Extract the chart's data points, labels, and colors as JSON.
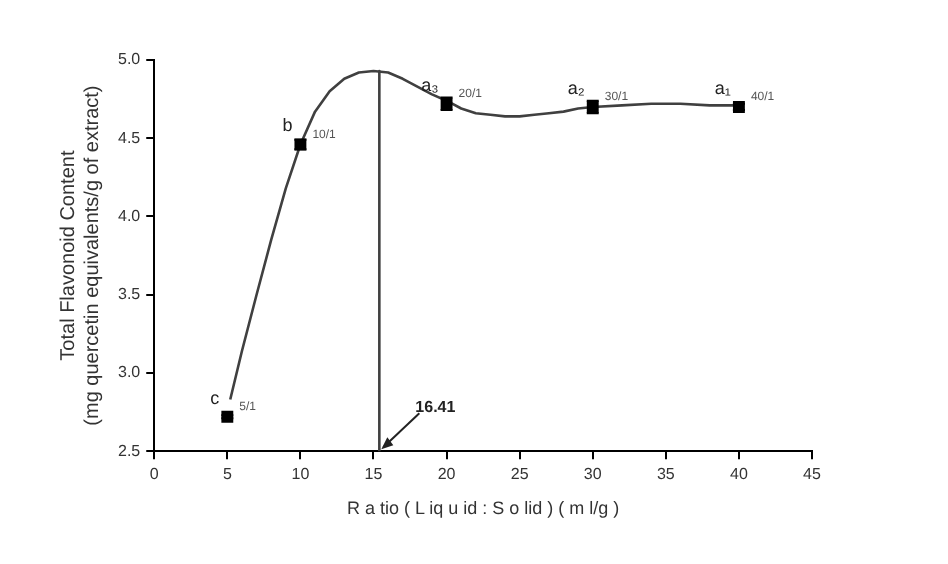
{
  "chart_data": {
    "type": "scatter",
    "xlabel": "R a tio ( L iq u id : S o lid ) ( m l/g )",
    "ylabel": "Total Flavonoid Content\n(mg quercetin equivalents/g of extract)",
    "xlim": [
      0,
      45
    ],
    "xticks": [
      0,
      5,
      10,
      15,
      20,
      25,
      30,
      35,
      40,
      45
    ],
    "ylim": [
      2.5,
      5.0
    ],
    "yticks": [
      2.5,
      {
        "value": 3,
        "label": "3.0"
      },
      3.5,
      {
        "value": 4,
        "label": "4.0"
      },
      4.5,
      {
        "value": 5,
        "label": "5.0"
      }
    ],
    "grid": false,
    "legend": false,
    "series": [
      {
        "marker": "square",
        "color": "#000000",
        "x": [
          5,
          10,
          20,
          30,
          40
        ],
        "values": [
          2.72,
          4.46,
          4.72,
          4.7,
          4.7
        ],
        "errors": [
          0.01,
          0.03,
          0.04,
          0.04,
          0.02
        ]
      },
      {
        "type": "line",
        "color": "#404040",
        "x": [
          5.2,
          6,
          7,
          8,
          9,
          10,
          11,
          12,
          13,
          14,
          15,
          16,
          17,
          18,
          19,
          20,
          21,
          22,
          23,
          24,
          25,
          26,
          27,
          28,
          29,
          30,
          32,
          34,
          36,
          38,
          40
        ],
        "values": [
          2.83,
          3.14,
          3.5,
          3.85,
          4.18,
          4.46,
          4.67,
          4.8,
          4.88,
          4.92,
          4.93,
          4.92,
          4.88,
          4.83,
          4.78,
          4.74,
          4.69,
          4.66,
          4.65,
          4.64,
          4.64,
          4.65,
          4.66,
          4.67,
          4.69,
          4.7,
          4.71,
          4.72,
          4.72,
          4.71,
          4.71
        ]
      },
      {
        "type": "line",
        "color": "#404040",
        "x": [
          15.4,
          15.4
        ],
        "values": [
          4.93,
          2.5
        ]
      }
    ],
    "annotations": [
      {
        "text": "16.41",
        "x": 15.4,
        "y": 2.5
      },
      {
        "text": "c",
        "x": 5,
        "y": 2.72
      },
      {
        "text": "5/1",
        "x": 5,
        "y": 2.72
      },
      {
        "text": "b",
        "x": 10,
        "y": 4.46
      },
      {
        "text": "10/1",
        "x": 10,
        "y": 4.46
      },
      {
        "text": "a₃",
        "x": 20,
        "y": 4.72
      },
      {
        "text": "20/1",
        "x": 20,
        "y": 4.72
      },
      {
        "text": "a₂",
        "x": 30,
        "y": 4.7
      },
      {
        "text": "30/1",
        "x": 30,
        "y": 4.7
      },
      {
        "text": "a₁",
        "x": 40,
        "y": 4.7
      },
      {
        "text": "40/1",
        "x": 40,
        "y": 4.7
      }
    ]
  }
}
